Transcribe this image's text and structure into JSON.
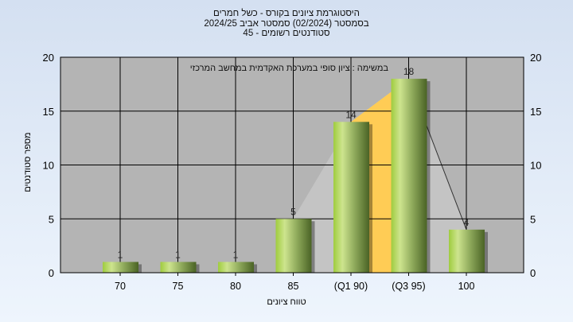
{
  "chart_data": {
    "type": "bar",
    "title": [
      "היסטוגרמת ציונים בקורס - כשל חמרים",
      "בסמסטר  (02/2024)  סמסטר אביב 2024/25",
      "סטודנטים רשומים - 45"
    ],
    "annotation": "במשימה : ציון סופי במערכת האקדמית במחשב המרכזי",
    "categories": [
      "70",
      "75",
      "80",
      "85",
      "(Q1 90)",
      "(Q3 95)",
      "100"
    ],
    "values": [
      1,
      1,
      1,
      5,
      14,
      18,
      4
    ],
    "xlabel": "טווח ציונים",
    "ylabel": "מספר סטודנטים",
    "ylim": [
      0,
      20
    ],
    "yticks": [
      "0",
      "5",
      "10",
      "15",
      "20"
    ],
    "grid": true,
    "colors": {
      "bar": "#9bc64a",
      "plot_bg": "#b4b4b4",
      "quartile_fill": "#ffcc55",
      "polygon_fill": "#c4c4c4"
    }
  }
}
